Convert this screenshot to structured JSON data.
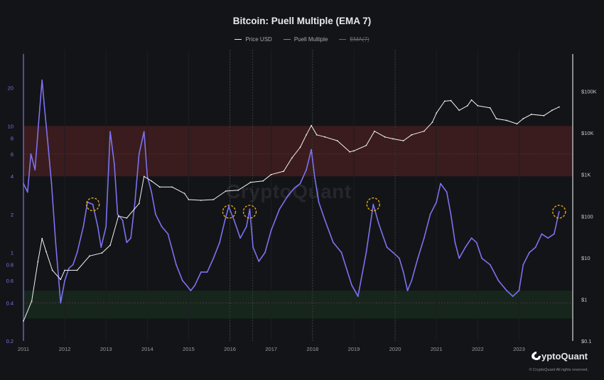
{
  "chart_data": {
    "type": "line",
    "title": "Bitcoin: Puell Multiple (EMA 7)",
    "legend": [
      "Price USD",
      "Puell Multiple",
      "EMA(7)"
    ],
    "x_ticks": [
      "2011",
      "2012",
      "2013",
      "2014",
      "2015",
      "2016",
      "2017",
      "2018",
      "2019",
      "2020",
      "2021",
      "2022",
      "2023"
    ],
    "y_left_ticks": [
      0.2,
      0.4,
      0.6,
      0.8,
      1,
      2,
      4,
      6,
      8,
      10,
      20
    ],
    "y_left_tick_labels": [
      "0.2",
      "0.4",
      "0.6",
      "0.8",
      "1",
      "2",
      "4",
      "6",
      "8",
      "10",
      "20"
    ],
    "y_right_ticks": [
      0.1,
      1,
      10,
      100,
      1000,
      10000,
      100000
    ],
    "y_right_tick_labels": [
      "$0.1",
      "$1",
      "$10",
      "$100",
      "$1K",
      "$10K",
      "$100K"
    ],
    "y_left_range": [
      0.2,
      40
    ],
    "y_right_range": [
      0.1,
      1000000
    ],
    "x_range": [
      2011.0,
      2024.3
    ],
    "log_scale": true,
    "grid": true,
    "bands": [
      {
        "name": "high-zone",
        "from": 4,
        "to": 10,
        "color": "#3a1c1e"
      },
      {
        "name": "low-zone",
        "from": 0.3,
        "to": 0.5,
        "color": "#17261d"
      }
    ],
    "band_lines": [
      6,
      0.4
    ],
    "highlight_years": [
      2016.0,
      2016.55,
      2018.0,
      2020.0
    ],
    "circle_markers": [
      {
        "x": 2012.68,
        "y": 2.4
      },
      {
        "x": 2015.98,
        "y": 2.1
      },
      {
        "x": 2016.48,
        "y": 2.1
      },
      {
        "x": 2019.47,
        "y": 2.4
      },
      {
        "x": 2023.97,
        "y": 2.1
      }
    ],
    "series": [
      {
        "name": "Puell Multiple",
        "color": "#7b72f0",
        "x": [
          2011.0,
          2011.1,
          2011.18,
          2011.28,
          2011.38,
          2011.45,
          2011.5,
          2011.58,
          2011.68,
          2011.78,
          2011.9,
          2012.0,
          2012.1,
          2012.2,
          2012.3,
          2012.45,
          2012.55,
          2012.68,
          2012.8,
          2012.88,
          2013.0,
          2013.1,
          2013.2,
          2013.28,
          2013.4,
          2013.5,
          2013.6,
          2013.7,
          2013.8,
          2013.92,
          2014.0,
          2014.1,
          2014.2,
          2014.35,
          2014.5,
          2014.7,
          2014.85,
          2014.95,
          2015.05,
          2015.15,
          2015.3,
          2015.45,
          2015.6,
          2015.75,
          2015.88,
          2015.97,
          2016.1,
          2016.25,
          2016.4,
          2016.48,
          2016.56,
          2016.7,
          2016.85,
          2017.0,
          2017.2,
          2017.4,
          2017.55,
          2017.7,
          2017.85,
          2017.97,
          2018.05,
          2018.15,
          2018.3,
          2018.5,
          2018.7,
          2018.85,
          2018.95,
          2019.1,
          2019.3,
          2019.47,
          2019.6,
          2019.8,
          2019.95,
          2020.1,
          2020.2,
          2020.3,
          2020.4,
          2020.55,
          2020.7,
          2020.85,
          2021.0,
          2021.1,
          2021.25,
          2021.35,
          2021.45,
          2021.55,
          2021.7,
          2021.85,
          2021.97,
          2022.1,
          2022.3,
          2022.5,
          2022.7,
          2022.85,
          2023.0,
          2023.1,
          2023.25,
          2023.4,
          2023.55,
          2023.7,
          2023.85,
          2023.97
        ],
        "values": [
          3.5,
          3.0,
          6.0,
          4.5,
          12.0,
          23.0,
          15.0,
          8.0,
          3.5,
          1.2,
          0.4,
          0.6,
          0.75,
          0.8,
          1.0,
          1.6,
          2.5,
          2.4,
          1.6,
          1.1,
          1.6,
          9.0,
          5.0,
          2.0,
          1.8,
          1.2,
          1.3,
          2.5,
          6.0,
          9.0,
          4.0,
          3.0,
          2.0,
          1.6,
          1.4,
          0.8,
          0.6,
          0.55,
          0.5,
          0.55,
          0.7,
          0.7,
          0.9,
          1.2,
          1.8,
          2.3,
          1.8,
          1.3,
          1.6,
          2.2,
          1.1,
          0.85,
          1.0,
          1.5,
          2.2,
          2.8,
          3.2,
          3.5,
          4.5,
          6.5,
          4.0,
          2.5,
          1.8,
          1.2,
          1.0,
          0.7,
          0.55,
          0.45,
          1.0,
          2.4,
          1.7,
          1.1,
          1.0,
          0.9,
          0.7,
          0.5,
          0.6,
          0.9,
          1.3,
          2.0,
          2.5,
          3.5,
          3.0,
          2.0,
          1.2,
          0.9,
          1.1,
          1.3,
          1.2,
          0.9,
          0.8,
          0.6,
          0.5,
          0.45,
          0.5,
          0.8,
          1.0,
          1.1,
          1.4,
          1.3,
          1.4,
          2.1
        ]
      },
      {
        "name": "Price USD",
        "color": "#f1f1f1",
        "x": [
          2011.0,
          2011.2,
          2011.35,
          2011.45,
          2011.55,
          2011.7,
          2011.9,
          2012.0,
          2012.3,
          2012.6,
          2012.9,
          2013.1,
          2013.3,
          2013.5,
          2013.8,
          2013.92,
          2014.1,
          2014.3,
          2014.6,
          2014.9,
          2015.0,
          2015.3,
          2015.6,
          2015.9,
          2016.2,
          2016.5,
          2016.8,
          2017.0,
          2017.3,
          2017.5,
          2017.7,
          2017.85,
          2017.97,
          2018.1,
          2018.3,
          2018.6,
          2018.9,
          2019.0,
          2019.3,
          2019.5,
          2019.75,
          2019.95,
          2020.2,
          2020.4,
          2020.7,
          2020.9,
          2021.0,
          2021.2,
          2021.35,
          2021.55,
          2021.75,
          2021.85,
          2022.0,
          2022.3,
          2022.45,
          2022.7,
          2022.95,
          2023.1,
          2023.3,
          2023.6,
          2023.8,
          2023.97
        ],
        "values": [
          0.3,
          0.9,
          8.0,
          29.0,
          14.0,
          5.0,
          3.0,
          5.0,
          5.0,
          11.0,
          13.0,
          20.0,
          100.0,
          90.0,
          200.0,
          900.0,
          700.0,
          500.0,
          500.0,
          350.0,
          250.0,
          240.0,
          250.0,
          400.0,
          420.0,
          650.0,
          700.0,
          1000.0,
          1200.0,
          2500.0,
          4500.0,
          9000.0,
          15000.0,
          9000.0,
          8000.0,
          6500.0,
          3500.0,
          3700.0,
          5000.0,
          11000.0,
          8000.0,
          7200.0,
          6500.0,
          9000.0,
          11000.0,
          18000.0,
          30000.0,
          58000.0,
          60000.0,
          35000.0,
          45000.0,
          62000.0,
          45000.0,
          40000.0,
          22000.0,
          20000.0,
          16500.0,
          22000.0,
          28000.0,
          26000.0,
          35000.0,
          42000.0
        ]
      }
    ]
  },
  "brand": {
    "name": "CryptoQuant",
    "copyright": "© CryptoQuant All rights reserved.",
    "watermark": "CryptoQuant"
  }
}
